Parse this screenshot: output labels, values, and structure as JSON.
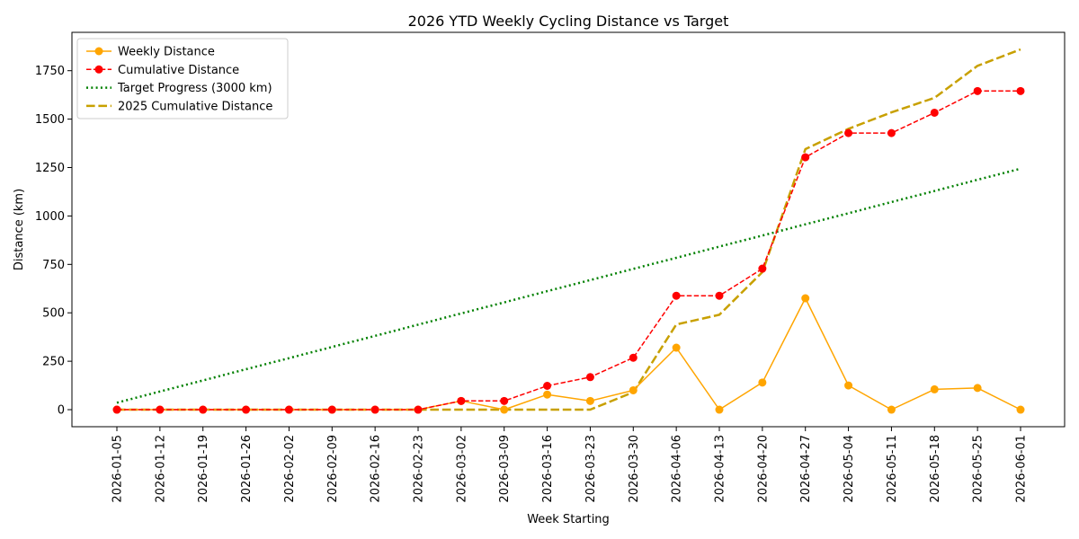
{
  "chart_data": {
    "type": "line",
    "title": "2026 YTD Weekly Cycling Distance vs Target",
    "xlabel": "Week Starting",
    "ylabel": "Distance (km)",
    "ylim": [
      -88,
      1948
    ],
    "yticks": [
      0,
      250,
      500,
      750,
      1000,
      1250,
      1500,
      1750
    ],
    "grid": false,
    "legend_position": "top-left",
    "categories": [
      "2026-01-05",
      "2026-01-12",
      "2026-01-19",
      "2026-01-26",
      "2026-02-02",
      "2026-02-09",
      "2026-02-16",
      "2026-02-23",
      "2026-03-02",
      "2026-03-09",
      "2026-03-16",
      "2026-03-23",
      "2026-03-30",
      "2026-04-06",
      "2026-04-13",
      "2026-04-20",
      "2026-04-27",
      "2026-05-04",
      "2026-05-11",
      "2026-05-18",
      "2026-05-25",
      "2026-06-01"
    ],
    "series": [
      {
        "name": "Weekly Distance",
        "color": "#ffa500",
        "style": "solid",
        "marker": "circle",
        "values": [
          0,
          0,
          0,
          0,
          0,
          0,
          0,
          0,
          45,
          0,
          78,
          45,
          100,
          320,
          0,
          140,
          575,
          125,
          0,
          105,
          112,
          0
        ]
      },
      {
        "name": "Cumulative Distance",
        "color": "#ff0000",
        "style": "dashed",
        "marker": "circle",
        "values": [
          0,
          0,
          0,
          0,
          0,
          0,
          0,
          0,
          45,
          45,
          123,
          168,
          268,
          588,
          588,
          728,
          1303,
          1428,
          1428,
          1533,
          1645,
          1645
        ]
      },
      {
        "name": "Target Progress (3000 km)",
        "color": "#008000",
        "style": "dotted",
        "marker": "none",
        "values": [
          36,
          94,
          151,
          209,
          266,
          324,
          381,
          439,
          497,
          554,
          612,
          669,
          727,
          784,
          842,
          899,
          957,
          1014,
          1072,
          1129,
          1187,
          1244
        ]
      },
      {
        "name": "2025 Cumulative Distance",
        "color": "#c8a000",
        "style": "longdash",
        "marker": "none",
        "values": [
          0,
          0,
          0,
          0,
          0,
          0,
          0,
          0,
          0,
          0,
          0,
          0,
          90,
          440,
          490,
          710,
          1345,
          1450,
          1535,
          1610,
          1775,
          1860
        ]
      }
    ]
  }
}
